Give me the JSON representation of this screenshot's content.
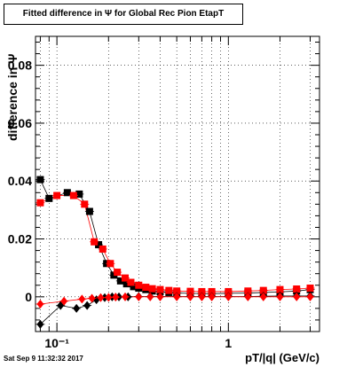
{
  "title": "Fitted difference in  Ψ  for Global Rec Pion EtapT",
  "timestamp": "Sat Sep  9 11:32:32 2017",
  "chart_data": {
    "type": "scatter",
    "xscale": "log",
    "grid": true,
    "xlim": [
      0.075,
      3.4
    ],
    "ylim": [
      -0.012,
      0.09
    ],
    "xlabel": "pT/|q| (GeV/c)",
    "ylabel": "difference in  Ψ",
    "xticks": [
      {
        "value": 0.1,
        "label": "10⁻¹"
      },
      {
        "value": 1,
        "label": "1"
      }
    ],
    "yticks": [
      {
        "value": 0,
        "label": "0"
      },
      {
        "value": 0.02,
        "label": "0.02"
      },
      {
        "value": 0.04,
        "label": "0.04"
      },
      {
        "value": 0.06,
        "label": "0.06"
      },
      {
        "value": 0.08,
        "label": "0.08"
      }
    ],
    "series": [
      {
        "marker": "square",
        "color": "#000000",
        "x": [
          0.08,
          0.09,
          0.115,
          0.135,
          0.155,
          0.175,
          0.195,
          0.215,
          0.235,
          0.255,
          0.28,
          0.3,
          0.33,
          0.36,
          0.4,
          0.45,
          0.5,
          0.6,
          0.7,
          0.8,
          1.0,
          1.3,
          1.6,
          2.0,
          2.5,
          3.0
        ],
        "y": [
          0.0405,
          0.034,
          0.036,
          0.0355,
          0.0295,
          0.018,
          0.0115,
          0.0075,
          0.0055,
          0.0045,
          0.0035,
          0.003,
          0.0025,
          0.002,
          0.0018,
          0.0015,
          0.0013,
          0.0012,
          0.0011,
          0.0011,
          0.0012,
          0.0013,
          0.0015,
          0.0017,
          0.002,
          0.0025
        ]
      },
      {
        "marker": "square",
        "color": "#ff0000",
        "x": [
          0.08,
          0.1,
          0.125,
          0.145,
          0.165,
          0.185,
          0.205,
          0.225,
          0.25,
          0.27,
          0.3,
          0.33,
          0.36,
          0.4,
          0.45,
          0.5,
          0.6,
          0.7,
          0.8,
          1.0,
          1.3,
          1.6,
          2.0,
          2.5,
          3.0
        ],
        "y": [
          0.0325,
          0.035,
          0.035,
          0.032,
          0.019,
          0.0165,
          0.0115,
          0.0085,
          0.0065,
          0.005,
          0.004,
          0.0033,
          0.0028,
          0.0025,
          0.0022,
          0.002,
          0.0019,
          0.0018,
          0.0018,
          0.0018,
          0.002,
          0.0022,
          0.0025,
          0.0027,
          0.003
        ]
      },
      {
        "marker": "diamond",
        "color": "#000000",
        "x": [
          0.08,
          0.105,
          0.13,
          0.15,
          0.17,
          0.19,
          0.21,
          0.23,
          0.26,
          0.3,
          0.35,
          0.4,
          0.5,
          0.6,
          0.7,
          0.8,
          1.0,
          1.3,
          1.6,
          2.0,
          2.5,
          3.0
        ],
        "y": [
          -0.0095,
          -0.003,
          -0.004,
          -0.003,
          -0.001,
          -0.0003,
          0.0,
          0.0,
          0.0,
          0.0001,
          0.0001,
          0.0001,
          0.0001,
          0.0001,
          0.0001,
          0.0001,
          0.0001,
          0.0001,
          0.0002,
          0.0003,
          0.0003,
          0.0003
        ]
      },
      {
        "marker": "diamond",
        "color": "#ff0000",
        "x": [
          0.08,
          0.11,
          0.14,
          0.16,
          0.18,
          0.2,
          0.22,
          0.25,
          0.3,
          0.35,
          0.4,
          0.5,
          0.6,
          0.7,
          0.8,
          1.0,
          1.3,
          1.6,
          2.0,
          2.5,
          3.0
        ],
        "y": [
          -0.0025,
          -0.0015,
          -0.0008,
          -0.0005,
          -0.0003,
          -0.0002,
          -0.0001,
          0.0,
          0.0,
          0.0,
          0.0,
          0.0,
          0.0,
          0.0,
          0.0,
          0.0,
          0.0,
          0.0,
          0.0,
          0.0,
          0.0
        ]
      }
    ]
  }
}
